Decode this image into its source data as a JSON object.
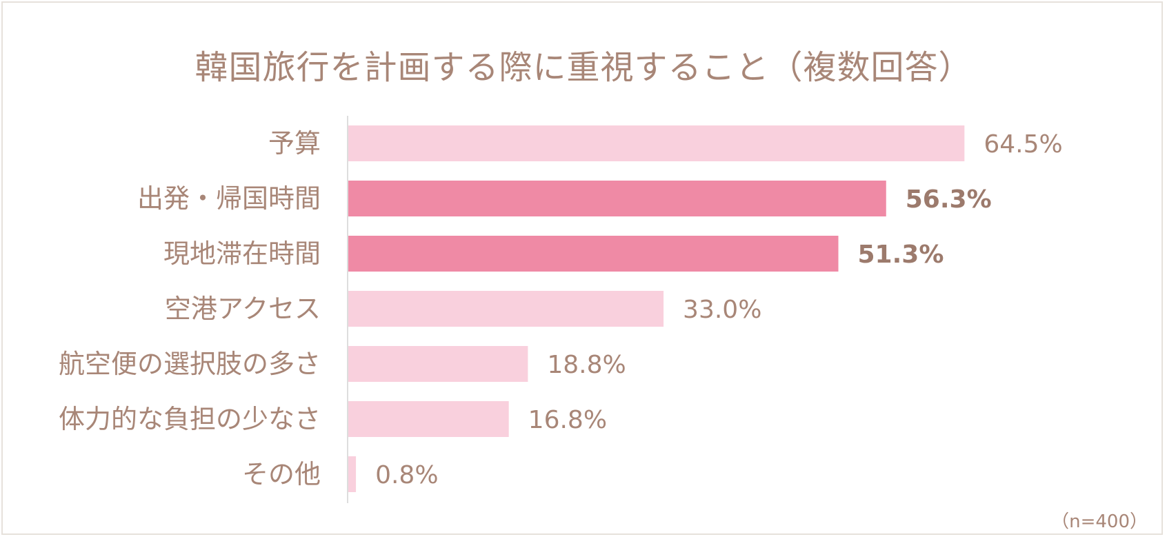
{
  "chart_data": {
    "type": "bar",
    "orientation": "horizontal",
    "title": "韓国旅行を計画する際に重視すること（複数回答）",
    "categories": [
      "予算",
      "出発・帰国時間",
      "現地滞在時間",
      "空港アクセス",
      "航空便の選択肢の多さ",
      "体力的な負担の少なさ",
      "その他"
    ],
    "values": [
      64.5,
      56.3,
      51.3,
      33.0,
      18.8,
      16.8,
      0.8
    ],
    "value_labels": [
      "64.5%",
      "56.3%",
      "51.3%",
      "33.0%",
      "18.8%",
      "16.8%",
      "0.8%"
    ],
    "highlight": [
      false,
      true,
      true,
      false,
      false,
      false,
      false
    ],
    "xlim": [
      0,
      70
    ],
    "grid": false,
    "colors": {
      "bar": "#f9d0dd",
      "highlight": "#ef8aa5",
      "text": "#a88677",
      "axis": "#dddddd"
    },
    "note": "（n=400）"
  }
}
